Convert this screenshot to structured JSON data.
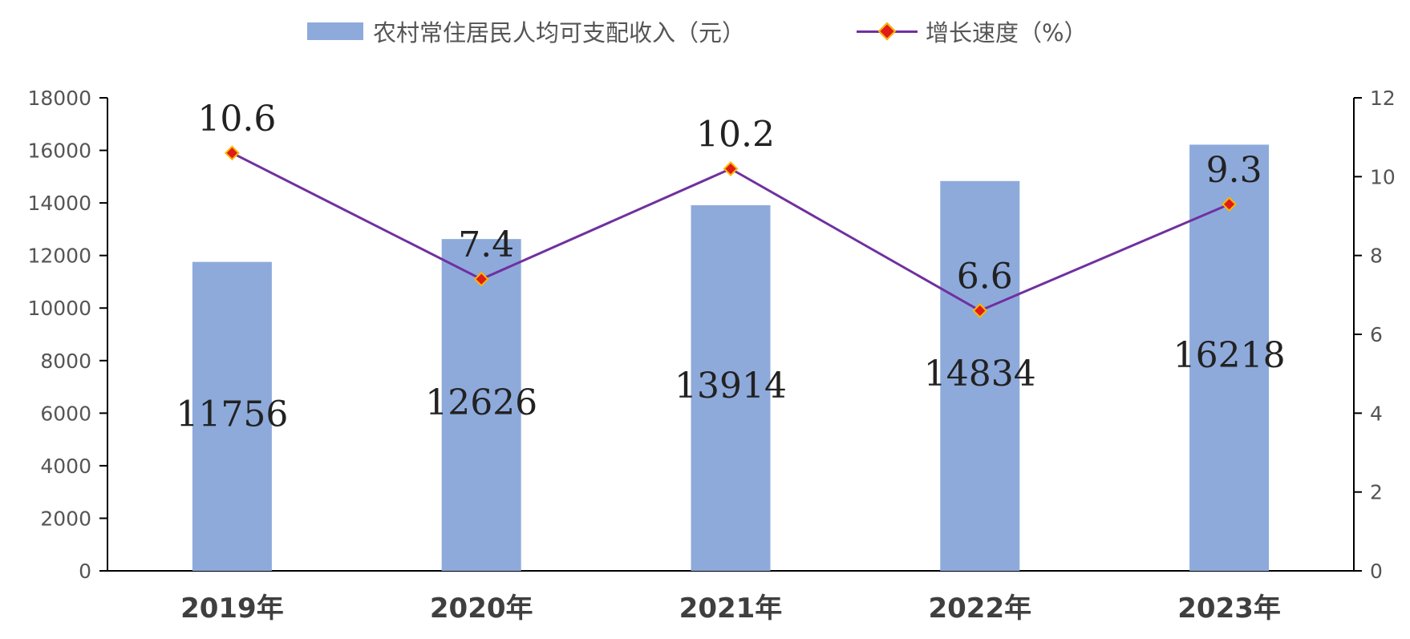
{
  "legend": {
    "bar_label": "农村常住居民人均可支配收入（元）",
    "line_label": "增长速度（%）"
  },
  "colors": {
    "bar": "#8eaadb",
    "line": "#7030a0",
    "marker_fill": "#e11a1a",
    "marker_stroke": "#f5b800",
    "axis": "#000000"
  },
  "chart_data": {
    "type": "bar",
    "categories": [
      "2019年",
      "2020年",
      "2021年",
      "2022年",
      "2023年"
    ],
    "series": [
      {
        "name": "农村常住居民人均可支配收入（元）",
        "type": "bar",
        "axis": "left",
        "values": [
          11756,
          12626,
          13914,
          14834,
          16218
        ],
        "labels": [
          "11756",
          "12626",
          "13914",
          "14834",
          "16218"
        ]
      },
      {
        "name": "增长速度（%）",
        "type": "line",
        "axis": "right",
        "values": [
          10.6,
          7.4,
          10.2,
          6.6,
          9.3
        ],
        "labels": [
          "10.6",
          "7.4",
          "10.2",
          "6.6",
          "9.3"
        ]
      }
    ],
    "y_left": {
      "min": 0,
      "max": 18000,
      "step": 2000,
      "ticks": [
        "0",
        "2000",
        "4000",
        "6000",
        "8000",
        "10000",
        "12000",
        "14000",
        "16000",
        "18000"
      ]
    },
    "y_right": {
      "min": 0,
      "max": 12,
      "step": 2,
      "ticks": [
        "0",
        "2",
        "4",
        "6",
        "8",
        "10",
        "12"
      ]
    },
    "grid": false,
    "legend_position": "top"
  }
}
